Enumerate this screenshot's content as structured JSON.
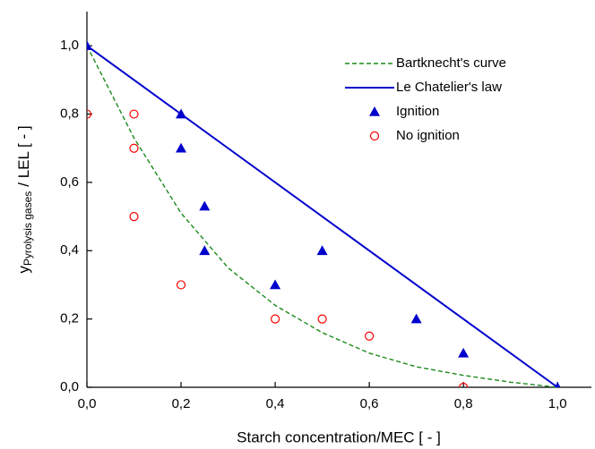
{
  "chart_data": {
    "type": "scatter",
    "xlabel": "Starch concentration/MEC [ - ]",
    "ylabel": {
      "main": "y",
      "subscript": "Pyrolysis gases",
      "suffix": "/ LEL [ - ]"
    },
    "xlim": [
      0,
      1.072
    ],
    "ylim": [
      0,
      1.1
    ],
    "xticks": [
      {
        "value": 0,
        "label": "0,0"
      },
      {
        "value": 0.2,
        "label": "0,2"
      },
      {
        "value": 0.4,
        "label": "0,4"
      },
      {
        "value": 0.6,
        "label": "0,6"
      },
      {
        "value": 0.8,
        "label": "0,8"
      },
      {
        "value": 1.0,
        "label": "1,0"
      }
    ],
    "yticks": [
      {
        "value": 0,
        "label": "0,0"
      },
      {
        "value": 0.2,
        "label": "0,2"
      },
      {
        "value": 0.4,
        "label": "0,4"
      },
      {
        "value": 0.6,
        "label": "0,6"
      },
      {
        "value": 0.8,
        "label": "0,8"
      },
      {
        "value": 1.0,
        "label": "1,0"
      }
    ],
    "legend": "top-right",
    "series": [
      {
        "name": "Bartknecht's curve",
        "color": "#1a8a1a",
        "marker": "dashed-line",
        "x": [
          0,
          0.1,
          0.2,
          0.3,
          0.4,
          0.5,
          0.6,
          0.7,
          0.8,
          0.9,
          1.0
        ],
        "values": [
          1.0,
          0.73,
          0.51,
          0.35,
          0.24,
          0.16,
          0.1,
          0.06,
          0.035,
          0.015,
          0.0
        ]
      },
      {
        "name": "Le Chatelier's law",
        "color": "#0000cc",
        "marker": "solid-line",
        "x": [
          0,
          1.0
        ],
        "values": [
          1.0,
          0.0
        ]
      },
      {
        "name": "Ignition",
        "color": "#0000cc",
        "marker": "triangle",
        "x": [
          0,
          0.2,
          0.2,
          0.25,
          0.25,
          0.4,
          0.5,
          0.7,
          0.8,
          1.0
        ],
        "values": [
          1.0,
          0.8,
          0.7,
          0.53,
          0.4,
          0.3,
          0.4,
          0.2,
          0.1,
          0.0
        ]
      },
      {
        "name": "No ignition",
        "color": "#ff0000",
        "marker": "circle",
        "x": [
          0,
          0.1,
          0.1,
          0.1,
          0.2,
          0.4,
          0.5,
          0.6,
          0.8
        ],
        "values": [
          0.8,
          0.8,
          0.7,
          0.5,
          0.3,
          0.2,
          0.2,
          0.15,
          0.0
        ]
      }
    ]
  }
}
